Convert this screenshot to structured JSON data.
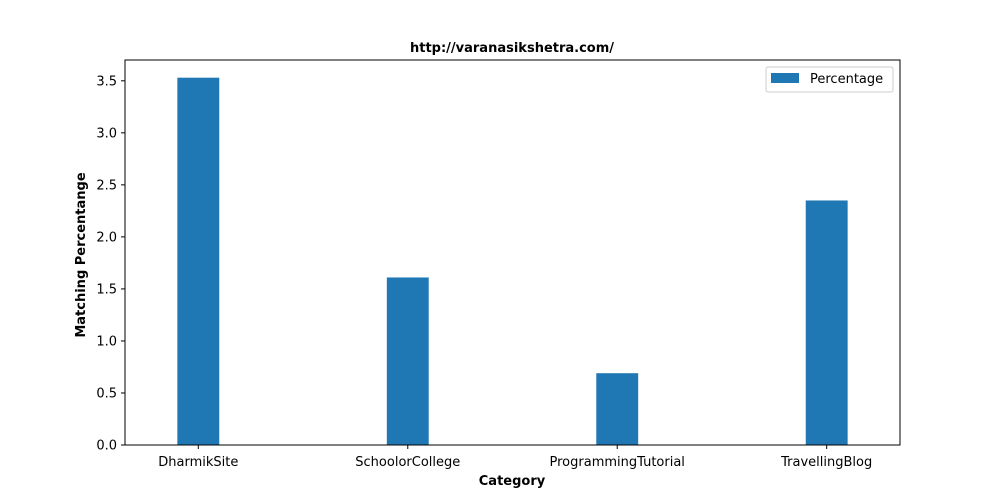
{
  "chart_data": {
    "type": "bar",
    "title": "http://varanasikshetra.com/",
    "xlabel": "Category",
    "ylabel": "Matching Percentange",
    "categories": [
      "DharmikSite",
      "SchoolorCollege",
      "ProgrammingTutorial",
      "TravellingBlog"
    ],
    "series": [
      {
        "name": "Percentage",
        "values": [
          3.53,
          1.61,
          0.69,
          2.35
        ]
      }
    ],
    "ylim": [
      0,
      3.7
    ],
    "yticks": [
      0.0,
      0.5,
      1.0,
      1.5,
      2.0,
      2.5,
      3.0,
      3.5
    ],
    "ytick_labels": [
      "0.0",
      "0.5",
      "1.0",
      "1.5",
      "2.0",
      "2.5",
      "3.0",
      "3.5"
    ],
    "grid": false,
    "legend_position": "top-right",
    "bar_color": "#1f77b4"
  }
}
